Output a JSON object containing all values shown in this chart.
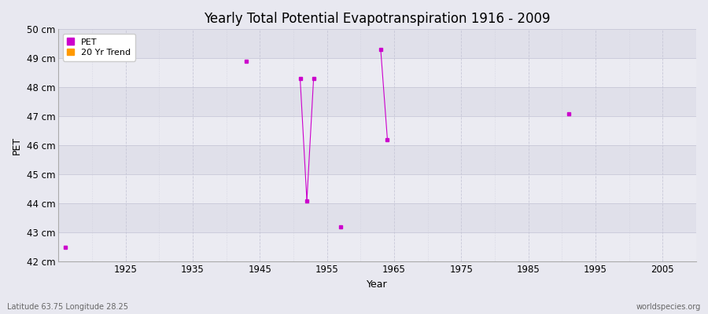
{
  "title": "Yearly Total Potential Evapotranspiration 1916 - 2009",
  "xlabel": "Year",
  "ylabel": "PET",
  "xlim": [
    1915,
    2010
  ],
  "ylim": [
    42,
    50
  ],
  "yticks": [
    42,
    43,
    44,
    45,
    46,
    47,
    48,
    49,
    50
  ],
  "ytick_labels": [
    "42 cm",
    "43 cm",
    "44 cm",
    "45 cm",
    "46 cm",
    "47 cm",
    "48 cm",
    "49 cm",
    "50 cm"
  ],
  "xticks": [
    1925,
    1935,
    1945,
    1955,
    1965,
    1975,
    1985,
    1995,
    2005
  ],
  "pet_data": [
    [
      1916,
      42.5
    ],
    [
      1943,
      48.9
    ],
    [
      1951,
      48.3
    ],
    [
      1952,
      44.1
    ],
    [
      1953,
      48.3
    ],
    [
      1957,
      43.2
    ],
    [
      1963,
      49.3
    ],
    [
      1964,
      46.2
    ],
    [
      1991,
      47.1
    ]
  ],
  "pet_color": "#cc00cc",
  "trend_color": "#ff9900",
  "bg_color_light": "#ebebf0",
  "bg_color_dark": "#e0e0ea",
  "fig_bg_color": "#e8e8f0",
  "grid_color": "#c8c8d8",
  "legend_labels": [
    "PET",
    "20 Yr Trend"
  ],
  "footnote_left": "Latitude 63.75 Longitude 28.25",
  "footnote_right": "worldspecies.org",
  "marker_size": 3,
  "band_colors": [
    "#ebebf2",
    "#e0e0ea"
  ]
}
